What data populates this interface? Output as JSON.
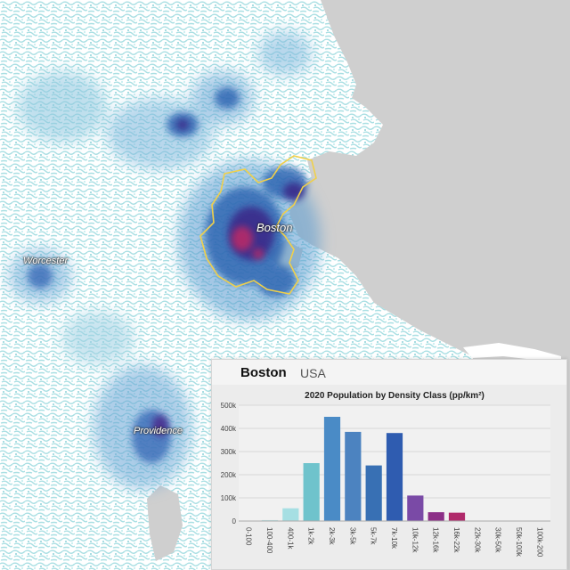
{
  "map": {
    "labels": {
      "boston": "Boston",
      "worcester": "Worcester",
      "providence": "Providence"
    },
    "colors": {
      "land": "#ffffff",
      "sea": "#cfcfcf",
      "low_density": "#b6e3e6",
      "mid_density": "#2d68b4",
      "high_density": "#3a1e7d",
      "very_high_density": "#b02a6b",
      "city_boundary": "#f0d04a"
    }
  },
  "panel": {
    "city": "Boston",
    "country": "USA"
  },
  "chart_data": {
    "type": "bar",
    "title": "2020 Population by Density Class (pp/km²)",
    "xlabel": "",
    "ylabel": "",
    "ylim": [
      0,
      500000
    ],
    "yticks": [
      {
        "value": 0,
        "label": "0"
      },
      {
        "value": 100000,
        "label": "100k"
      },
      {
        "value": 200000,
        "label": "200k"
      },
      {
        "value": 300000,
        "label": "300k"
      },
      {
        "value": 400000,
        "label": "400k"
      },
      {
        "value": 500000,
        "label": "500k"
      }
    ],
    "grid": true,
    "categories": [
      "0-100",
      "100-400",
      "400-1k",
      "1k-2k",
      "2k-3k",
      "3k-5k",
      "5k-7k",
      "7k-10k",
      "10k-12k",
      "12k-16k",
      "16k-22k",
      "22k-30k",
      "30k-50k",
      "50k-100k",
      "100k-200"
    ],
    "values": [
      0,
      4000,
      55000,
      250000,
      450000,
      385000,
      240000,
      380000,
      110000,
      38000,
      36000,
      0,
      0,
      0,
      0
    ],
    "colors": [
      "#b9e4e7",
      "#b9e4e7",
      "#a6dfe3",
      "#6fc3cc",
      "#4a8bc6",
      "#4c83c0",
      "#3870b4",
      "#2f5cb0",
      "#7a4aa6",
      "#8c2f87",
      "#b02a6b",
      "#b02a6b",
      "#b02a6b",
      "#b02a6b",
      "#b02a6b"
    ]
  }
}
